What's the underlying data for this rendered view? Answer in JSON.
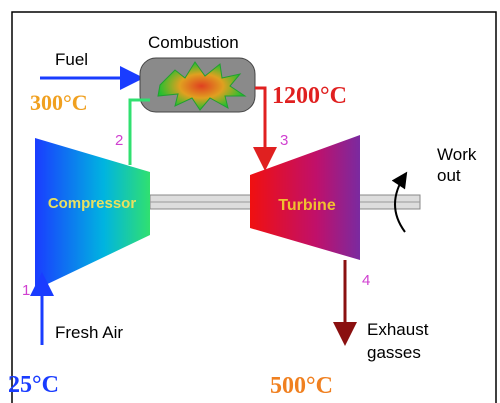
{
  "labels": {
    "fuel": "Fuel",
    "combustion": "Combustion",
    "t2": "300°C",
    "t3": "1200°C",
    "p2": "2",
    "p3": "3",
    "p1": "1",
    "p4": "4",
    "compressor": "Compressor",
    "turbine": "Turbine",
    "work1": "Work",
    "work2": "out",
    "fresh_air": "Fresh Air",
    "exhaust1": "Exhaust",
    "exhaust2": "gasses",
    "t1": "25°C",
    "t4": "500°C"
  }
}
